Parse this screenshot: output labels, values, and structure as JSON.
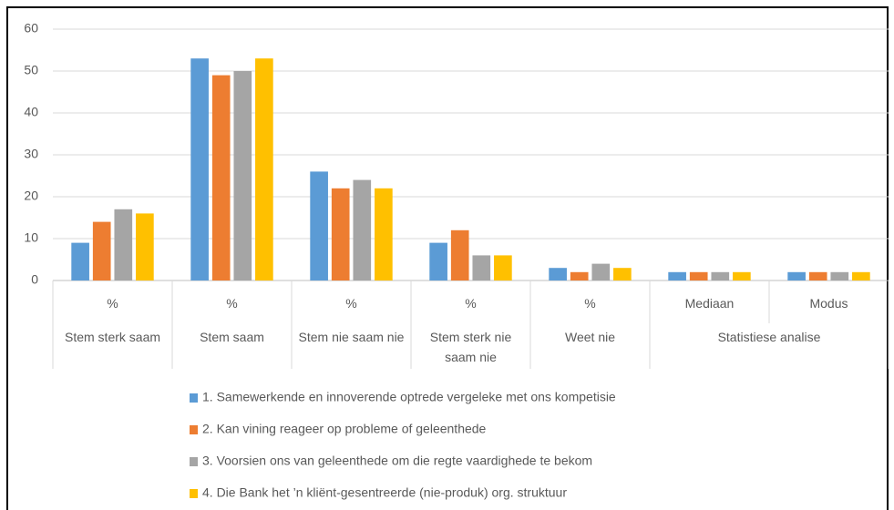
{
  "chart_data": {
    "type": "bar",
    "categories": [
      "%",
      "%",
      "%",
      "%",
      "%",
      "Mediaan",
      "Modus"
    ],
    "groups": [
      "Stem sterk saam",
      "Stem saam",
      "Stem nie saam nie",
      "Stem sterk nie saam nie",
      "Weet nie",
      "Statistiese analise",
      null
    ],
    "series": [
      {
        "name": "1. Samewerkende en innoverende optrede vergeleke met ons kompetisie",
        "color": "#5b9bd5",
        "values": [
          9,
          53,
          26,
          9,
          3,
          2,
          2
        ]
      },
      {
        "name": "2. Kan vining reageer op probleme of geleenthede",
        "color": "#ed7d31",
        "values": [
          14,
          49,
          22,
          12,
          2,
          2,
          2
        ]
      },
      {
        "name": "3. Voorsien ons van geleenthede om die regte vaardighede te bekom",
        "color": "#a5a5a5",
        "values": [
          17,
          50,
          24,
          6,
          4,
          2,
          2
        ]
      },
      {
        "name": "4. Die Bank het ’n kliënt-gesentreerde (nie-produk) org. struktuur",
        "color": "#ffc000",
        "values": [
          16,
          53,
          22,
          6,
          3,
          2,
          2
        ]
      }
    ],
    "ylim": [
      0,
      60
    ],
    "yticks": [
      0,
      10,
      20,
      30,
      40,
      50,
      60
    ],
    "grid": true,
    "legend": "bottom"
  }
}
